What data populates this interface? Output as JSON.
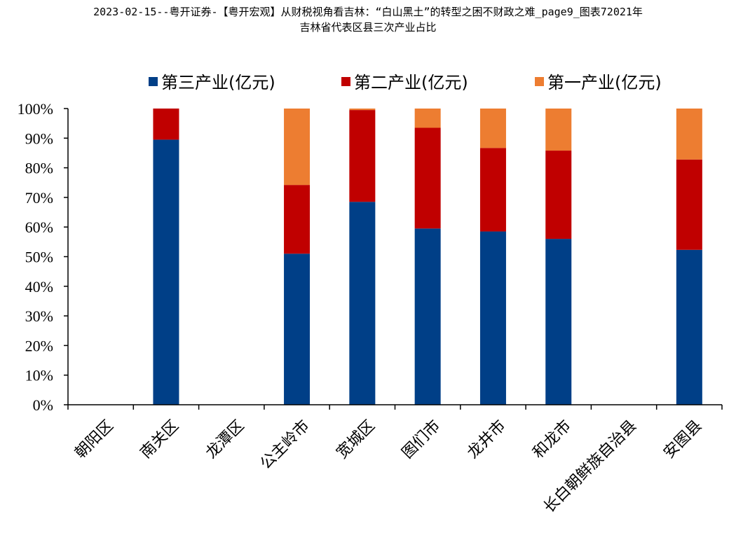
{
  "chart_data": {
    "type": "bar",
    "stacked": true,
    "title_line1": "2023-02-15--粤开证券-【粤开宏观】从财税视角看吉林：“白山黑土”的转型之困不财政之难_page9_图表72021年",
    "title_line2": "吉林省代表区县三次产业占比",
    "categories": [
      "朝阳区",
      "南关区",
      "龙潭区",
      "公主岭市",
      "宽城区",
      "图们市",
      "龙井市",
      "和龙市",
      "长白朝鲜族自治县",
      "安图县"
    ],
    "series": [
      {
        "name": "第三产业(亿元)",
        "color": "#003F87",
        "values": [
          0,
          0.895,
          0,
          0.51,
          0.685,
          0.595,
          0.585,
          0.56,
          0,
          0.523
        ]
      },
      {
        "name": "第二产业(亿元)",
        "color": "#C00000",
        "values": [
          0,
          0.105,
          0,
          0.232,
          0.31,
          0.34,
          0.282,
          0.298,
          0,
          0.305
        ]
      },
      {
        "name": "第一产业(亿元)",
        "color": "#ED7D31",
        "values": [
          0,
          0,
          0,
          0.258,
          0.005,
          0.065,
          0.133,
          0.142,
          0,
          0.172
        ]
      }
    ],
    "yticks": [
      "0%",
      "10%",
      "20%",
      "30%",
      "40%",
      "50%",
      "60%",
      "70%",
      "80%",
      "90%",
      "100%"
    ],
    "ylim": [
      0,
      1
    ],
    "legend_position": "top",
    "grid": false
  }
}
